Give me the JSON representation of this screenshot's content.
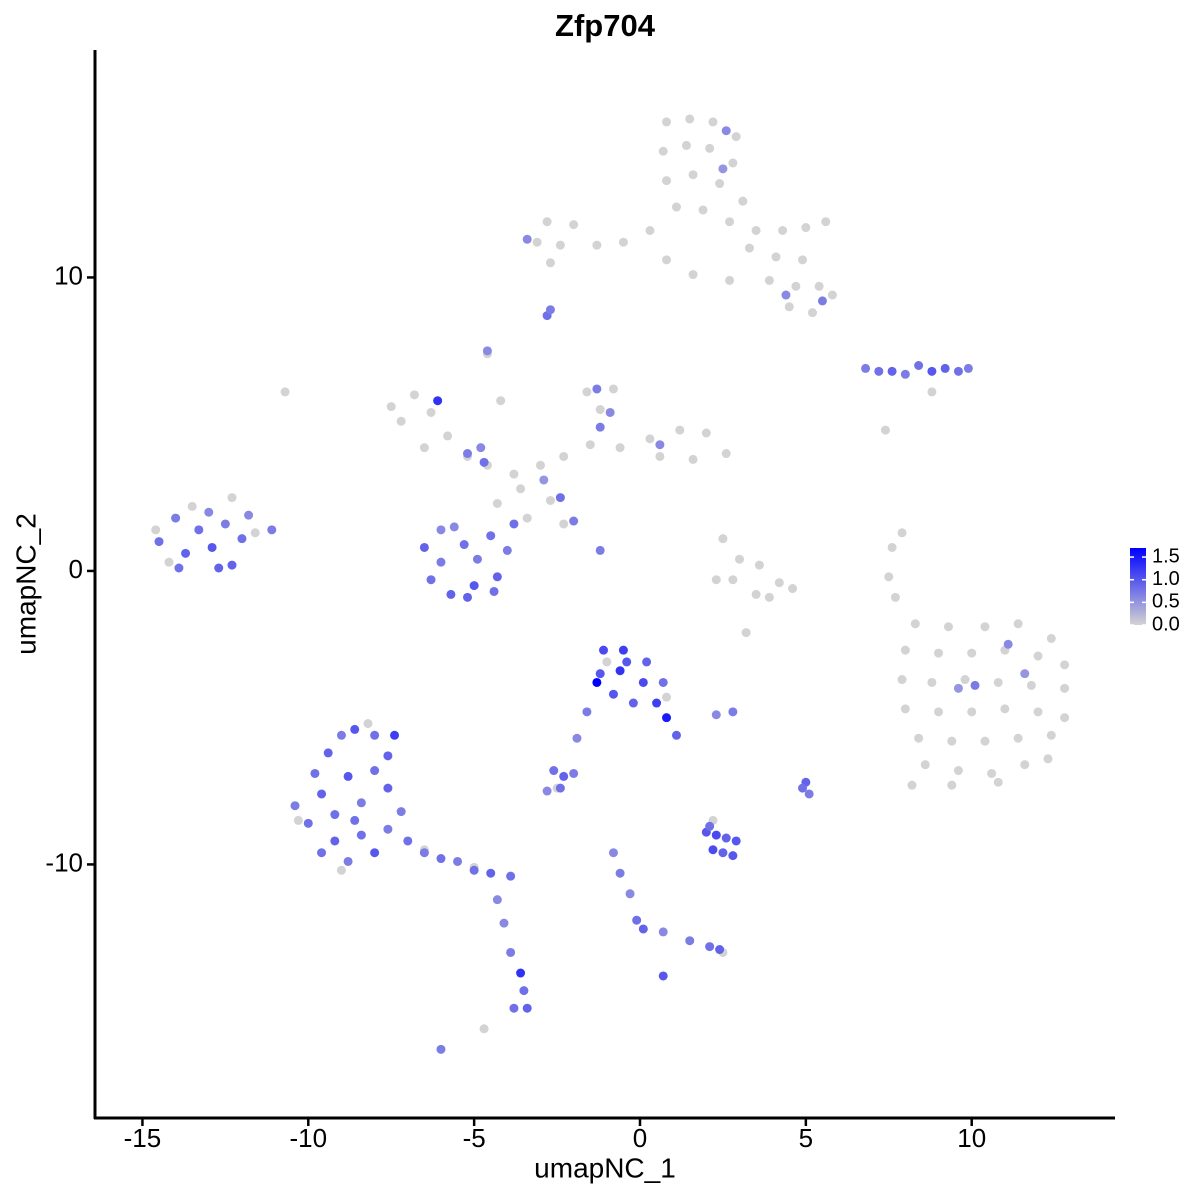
{
  "chart_data": {
    "type": "scatter",
    "title": "Zfp704",
    "x_label": "umapNC_1",
    "y_label": "umapNC_2",
    "xlim": [
      -16.43,
      14.32
    ],
    "ylim": [
      -18.64,
      17.75
    ],
    "xticks": [
      -15,
      -10,
      -5,
      0,
      5,
      10
    ],
    "yticks": [
      -10,
      0,
      10
    ],
    "color_scale": {
      "low": "#d3d3d3",
      "high": "#0000ff",
      "lim": [
        0,
        1.7
      ],
      "ticks": [
        {
          "value": 0,
          "label": "0.0"
        },
        0.5,
        {
          "value": 1,
          "label": "1.0"
        },
        1.5
      ]
    },
    "points": {
      "x": [
        0.8,
        1.5,
        2.2,
        2.9,
        0.7,
        1.4,
        2.1,
        2.8,
        0.8,
        1.6,
        2.4,
        3.1,
        1.1,
        1.9,
        2.7,
        3.5,
        4.3,
        5,
        5.6,
        3.3,
        4.1,
        4.9,
        3.9,
        4.7,
        5.4,
        4.5,
        5.2,
        5.8,
        0.3,
        -0.5,
        -1.3,
        -2,
        -2.8,
        -3.1,
        -2.4,
        -2.7,
        0.8,
        1.6,
        2.7,
        -7.5,
        -6.8,
        -7.2,
        -6.3,
        -5.8,
        -6.5,
        -5.2,
        -4.6,
        -3.8,
        -3,
        -2.3,
        -1.5,
        -0.6,
        0.3,
        1.2,
        2,
        2.6,
        1.6,
        0.6,
        -1.2,
        -0.8,
        -1.6,
        -3.6,
        -4.3,
        -3.4,
        -2.7,
        -4.6,
        -4.2,
        -2.3,
        2.5,
        3,
        3.6,
        2.8,
        3.5,
        4.2,
        4.6,
        2.3,
        3.9,
        8.3,
        9.3,
        10.4,
        11.4,
        12.4,
        8,
        9,
        10,
        11,
        12,
        12.8,
        7.9,
        8.8,
        9.8,
        10.8,
        11.8,
        12.8,
        8,
        9,
        10,
        11,
        12,
        12.8,
        8.4,
        9.4,
        10.4,
        11.4,
        12.4,
        8.6,
        9.6,
        10.6,
        11.6,
        12.3,
        8.2,
        9.4,
        10.8,
        7.6,
        7.9,
        7.5,
        7.7,
        8.8,
        7.4,
        3.2,
        -14.6,
        -13.5,
        -12.3,
        -11.6,
        -14.2,
        -8.2,
        -10.3,
        -9,
        -6.5,
        -5,
        -1,
        0.8,
        -2.5,
        2.2,
        2.5,
        -4.7,
        -10.7,
        -14.5,
        -14,
        -13.7,
        -13.3,
        -13,
        -12.9,
        -12.5,
        -12.3,
        -12,
        -11.8,
        -11.1,
        -13.9,
        -12.7,
        -6.5,
        -6.3,
        -6,
        -5.7,
        -5.6,
        -5.3,
        -5,
        -4.9,
        -4.5,
        -4.3,
        -4,
        -3.8,
        -6,
        -5.2,
        -4.4,
        -5.2,
        -4.7,
        -4.8,
        -1.3,
        -0.9,
        -1.2,
        -2.4,
        -2,
        -1.2,
        -6.1,
        -4.6,
        0.6,
        -2.9,
        -2.8,
        -2.7,
        2.6,
        2.5,
        -3.4,
        4.4,
        5.5,
        6.8,
        7.2,
        7.6,
        8,
        8.4,
        8.8,
        9.2,
        9.6,
        9.9,
        11.1,
        10.1,
        9.6,
        11.6,
        -1.1,
        -0.5,
        0.2,
        -1.2,
        -0.6,
        0.1,
        -1.3,
        -0.8,
        -0.2,
        0.5,
        0.8,
        1.1,
        -0.4,
        0.7,
        -1.6,
        -1.9,
        2.3,
        2.8,
        -2.6,
        -2.3,
        -2,
        -2.4,
        -2.8,
        5,
        4.9,
        5.1,
        2,
        2.3,
        2.6,
        2.9,
        2.2,
        2.5,
        2.8,
        2.1,
        -0.8,
        -0.6,
        -0.3,
        -0.1,
        0.1,
        0.7,
        1.5,
        2.1,
        2.4,
        0.7,
        -9.8,
        -9.4,
        -9,
        -8.6,
        -8,
        -7.6,
        -10.4,
        -10,
        -9.6,
        -9.2,
        -8.8,
        -8.4,
        -8,
        -7.6,
        -7.2,
        -9.6,
        -9.2,
        -8.8,
        -8.4,
        -8,
        -7.6,
        -7,
        -6.5,
        -6,
        -5.5,
        -5,
        -4.5,
        -3.9,
        -7.4,
        -8.6,
        -4.3,
        -4.1,
        -3.9,
        -3.6,
        -3.5,
        -3.4,
        -3.8,
        -6
      ],
      "y": [
        15.3,
        15.4,
        15.3,
        14.8,
        14.3,
        14.5,
        14.4,
        13.9,
        13.3,
        13.5,
        13.2,
        12.6,
        12.4,
        12.3,
        11.9,
        11.6,
        11.6,
        11.7,
        11.9,
        11,
        10.7,
        10.6,
        9.9,
        9.7,
        9.7,
        9,
        8.8,
        9.4,
        11.6,
        11.2,
        11.1,
        11.8,
        11.9,
        11.2,
        11.1,
        10.5,
        10.6,
        10.1,
        9.9,
        5.6,
        6,
        5.1,
        5.4,
        4.6,
        4.2,
        3.9,
        3.6,
        3.3,
        3.6,
        3.9,
        4.3,
        4.2,
        4.5,
        4.8,
        4.7,
        4,
        3.8,
        3.9,
        5.5,
        6.2,
        6.1,
        2.8,
        2.3,
        1.8,
        2.4,
        7.4,
        5.8,
        1.6,
        1.1,
        0.4,
        0.2,
        -0.3,
        -0.8,
        -0.4,
        -0.6,
        -0.3,
        -0.9,
        -1.8,
        -1.9,
        -1.9,
        -1.8,
        -2.3,
        -2.7,
        -2.8,
        -2.8,
        -2.7,
        -2.9,
        -3.2,
        -3.7,
        -3.8,
        -3.7,
        -3.8,
        -3.9,
        -4,
        -4.7,
        -4.8,
        -4.8,
        -4.7,
        -4.8,
        -5,
        -5.7,
        -5.8,
        -5.8,
        -5.7,
        -5.6,
        -6.6,
        -6.8,
        -6.9,
        -6.6,
        -6.4,
        -7.3,
        -7.3,
        -7.2,
        0.8,
        1.3,
        -0.2,
        -0.9,
        6.1,
        4.8,
        -2.1,
        1.4,
        2.2,
        2.5,
        1.3,
        0.3,
        -5.2,
        -8.5,
        -10.2,
        -9.5,
        -10.1,
        -3.1,
        -4.3,
        -7.4,
        -8.5,
        -13,
        -15.6,
        6.1,
        1,
        1.8,
        0.6,
        1.4,
        2,
        0.8,
        1.6,
        0.2,
        1.1,
        1.9,
        1.4,
        0.1,
        0.1,
        0.8,
        -0.3,
        0.3,
        -0.8,
        1.5,
        0.9,
        -0.5,
        0.4,
        1.2,
        -0.2,
        0.7,
        1.6,
        1.4,
        -0.9,
        -0.7,
        4,
        3.7,
        4.2,
        6.2,
        5.4,
        4.9,
        2.5,
        1.7,
        0.7,
        5.8,
        7.5,
        4.3,
        3.1,
        8.7,
        8.9,
        15,
        13.7,
        11.3,
        9.4,
        9.2,
        6.9,
        6.8,
        6.8,
        6.7,
        7,
        6.8,
        6.9,
        6.8,
        6.9,
        -2.5,
        -3.9,
        -4,
        -3.5,
        -2.7,
        -2.7,
        -3.1,
        -3.5,
        -3.4,
        -3.8,
        -3.8,
        -4.2,
        -4.5,
        -4.5,
        -5,
        -5.6,
        -3.1,
        -3.8,
        -4.8,
        -5.7,
        -4.9,
        -4.8,
        -6.8,
        -7,
        -6.9,
        -7.4,
        -7.5,
        -7.2,
        -7.4,
        -7.6,
        -8.9,
        -9,
        -9.1,
        -9.2,
        -9.5,
        -9.6,
        -9.7,
        -8.7,
        -9.6,
        -10.3,
        -11,
        -11.9,
        -12.2,
        -12.3,
        -12.6,
        -12.8,
        -12.9,
        -13.8,
        -6.9,
        -6.2,
        -5.6,
        -5.4,
        -5.6,
        -6.3,
        -8,
        -8.6,
        -7.6,
        -8.3,
        -7,
        -7.9,
        -6.8,
        -7.4,
        -8.2,
        -9.6,
        -9.2,
        -9.9,
        -9,
        -9.6,
        -8.8,
        -9.2,
        -9.6,
        -9.8,
        -9.9,
        -10.2,
        -10.3,
        -10.4,
        -5.6,
        -8.5,
        -11.2,
        -12,
        -13,
        -13.7,
        -14.3,
        -14.9,
        -14.9,
        -16.3
      ],
      "values": [
        0,
        0,
        0,
        0,
        0,
        0,
        0,
        0,
        0,
        0,
        0,
        0,
        0,
        0,
        0,
        0,
        0,
        0,
        0,
        0,
        0,
        0,
        0,
        0,
        0,
        0,
        0,
        0,
        0,
        0,
        0,
        0,
        0,
        0,
        0,
        0,
        0,
        0,
        0,
        0,
        0,
        0,
        0,
        0,
        0,
        0,
        0,
        0,
        0,
        0,
        0,
        0,
        0,
        0,
        0,
        0,
        0,
        0,
        0,
        0,
        0,
        0,
        0,
        0,
        0,
        0,
        0,
        0,
        0,
        0,
        0,
        0,
        0,
        0,
        0,
        0,
        0,
        0,
        0,
        0,
        0,
        0,
        0,
        0,
        0,
        0,
        0,
        0,
        0,
        0,
        0,
        0,
        0,
        0,
        0,
        0,
        0,
        0,
        0,
        0,
        0,
        0,
        0,
        0,
        0,
        0,
        0,
        0,
        0,
        0,
        0,
        0,
        0,
        0,
        0,
        0,
        0,
        0,
        0,
        0,
        0,
        0,
        0,
        0,
        0,
        0,
        0,
        0,
        0,
        0,
        0,
        0,
        0,
        0,
        0,
        0,
        0,
        0.8,
        0.7,
        0.9,
        0.8,
        0.6,
        1.0,
        0.7,
        0.9,
        0.8,
        0.6,
        0.7,
        0.8,
        0.9,
        0.9,
        0.8,
        0.7,
        0.9,
        0.6,
        0.8,
        1.0,
        0.7,
        0.8,
        0.9,
        0.7,
        0.8,
        0.6,
        0.9,
        0.8,
        0.7,
        0.8,
        0.6,
        0.7,
        0.6,
        0.7,
        0.8,
        0.7,
        0.7,
        1.3,
        0.6,
        0.6,
        0.5,
        0.8,
        0.7,
        0.6,
        0.5,
        0.6,
        0.6,
        0.7,
        0.7,
        0.8,
        0.9,
        0.7,
        0.8,
        1.0,
        0.9,
        0.8,
        0.7,
        0.6,
        0.7,
        0.5,
        0.5,
        1.1,
        1.2,
        0.9,
        1.0,
        1.3,
        1.1,
        1.7,
        1.0,
        0.9,
        1.2,
        1.5,
        0.9,
        1.0,
        0.8,
        0.7,
        0.6,
        0.6,
        0.7,
        0.8,
        0.9,
        0.7,
        0.8,
        0.6,
        0.9,
        0.8,
        0.7,
        1.0,
        1.1,
        0.9,
        1.0,
        1.1,
        0.9,
        1.0,
        0.8,
        0.6,
        0.7,
        0.6,
        0.8,
        0.9,
        0.6,
        0.7,
        0.8,
        0.9,
        1.0,
        0.8,
        0.9,
        0.7,
        1.0,
        0.8,
        0.9,
        0.7,
        0.8,
        0.9,
        0.8,
        1.0,
        0.7,
        0.8,
        0.9,
        0.7,
        0.8,
        0.9,
        0.7,
        0.8,
        1.0,
        0.7,
        0.8,
        0.7,
        0.8,
        0.7,
        0.8,
        0.9,
        0.8,
        1.2,
        0.8,
        0.6,
        0.6,
        0.7,
        1.3,
        0.8,
        0.9,
        0.8,
        0.7
      ]
    }
  }
}
